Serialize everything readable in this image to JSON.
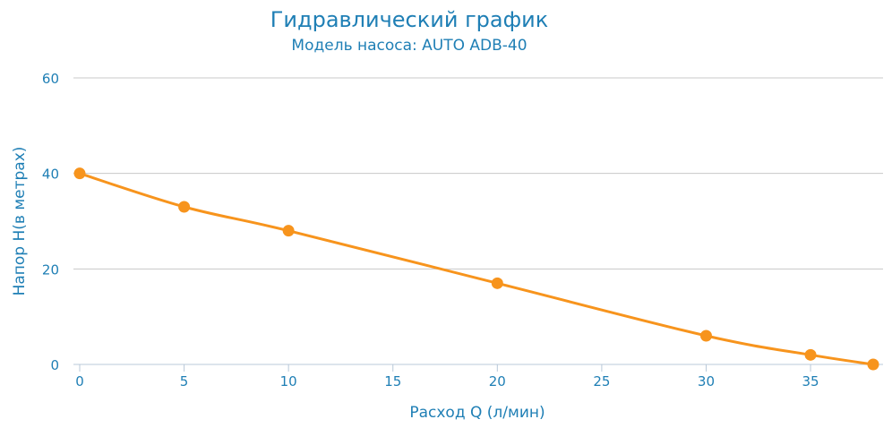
{
  "chart_data": {
    "type": "line",
    "title": "Гидравлический график",
    "subtitle": "Модель насоса: AUTO ADB-40",
    "xlabel": "Расход Q (л/мин)",
    "ylabel": "Напор H(в метрах)",
    "xlim": [
      0,
      38
    ],
    "ylim": [
      0,
      60
    ],
    "x_ticks": [
      "0",
      "5",
      "10",
      "15",
      "20",
      "25",
      "30",
      "35"
    ],
    "y_ticks": [
      "0",
      "20",
      "40",
      "60"
    ],
    "grid": true,
    "legend": "none",
    "series": [
      {
        "x": [
          0,
          5,
          10,
          20,
          30,
          35,
          38
        ],
        "y": [
          40,
          33,
          28,
          17,
          6,
          2,
          0
        ],
        "color": "#f7941d"
      }
    ]
  }
}
